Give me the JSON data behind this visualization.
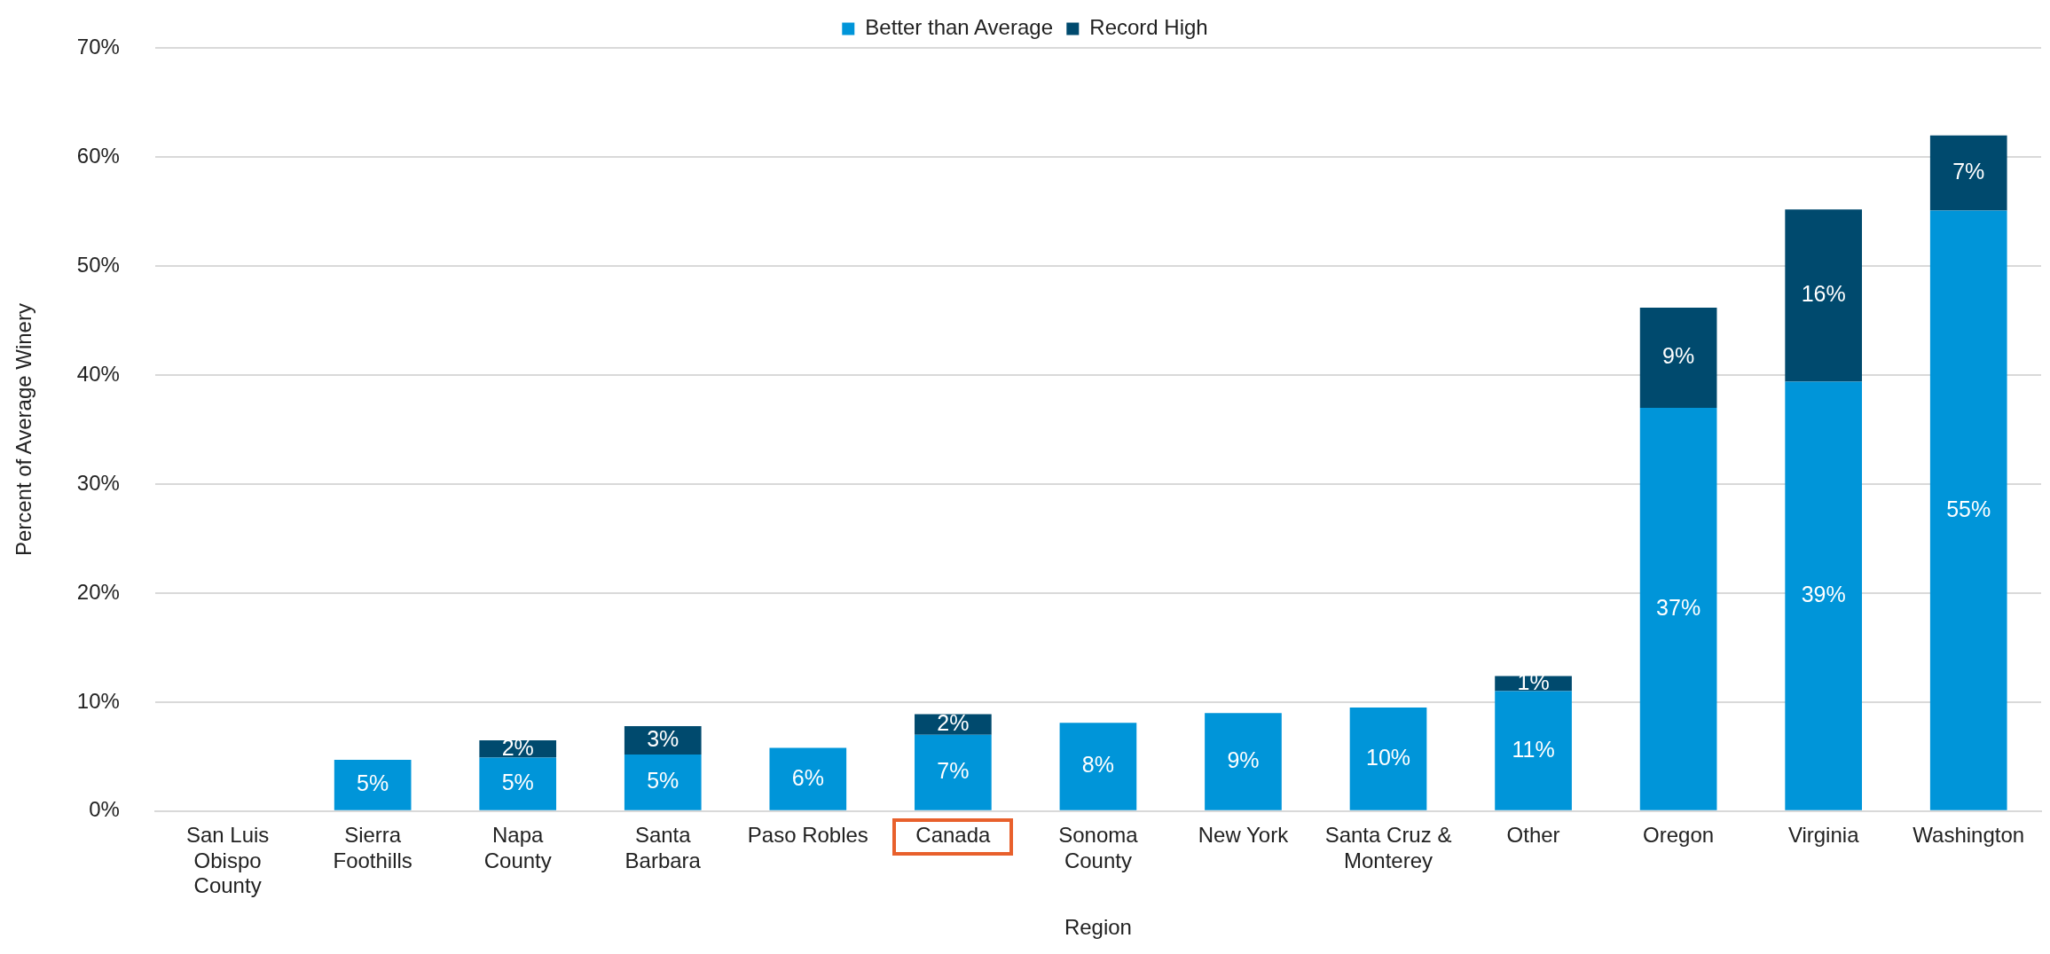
{
  "chart_data": {
    "type": "bar",
    "stacked": true,
    "xlabel": "Region",
    "ylabel": "Percent of Average Winery",
    "categories": [
      "San Luis\nObispo\nCounty",
      "Sierra\nFoothills",
      "Napa\nCounty",
      "Santa\nBarbara",
      "Paso Robles",
      "Canada",
      "Sonoma\nCounty",
      "New York",
      "Santa Cruz &\nMonterey",
      "Other",
      "Oregon",
      "Virginia",
      "Washington"
    ],
    "series": [
      {
        "name": "Better than Average",
        "color": "#0095d9",
        "values": [
          0,
          4.7,
          4.9,
          5.2,
          5.8,
          7.0,
          8.1,
          9.0,
          9.5,
          11.0,
          37.0,
          39.4,
          55.1
        ],
        "value_labels": [
          null,
          "5%",
          "5%",
          "5%",
          "6%",
          "7%",
          "8%",
          "9%",
          "10%",
          "11%",
          "37%",
          "39%",
          "55%"
        ]
      },
      {
        "name": "Record High",
        "color": "#004a6e",
        "values": [
          null,
          null,
          1.6,
          2.6,
          null,
          1.9,
          null,
          null,
          null,
          1.4,
          9.2,
          15.8,
          6.9
        ],
        "value_labels": [
          null,
          null,
          "2%",
          "3%",
          null,
          "2%",
          null,
          null,
          null,
          "1%",
          "9%",
          "16%",
          "7%"
        ]
      }
    ],
    "ylim": [
      0,
      70
    ],
    "yticks": [
      {
        "value": 0,
        "label": "0%"
      },
      {
        "value": 10,
        "label": "10%"
      },
      {
        "value": 20,
        "label": "20%"
      },
      {
        "value": 30,
        "label": "30%"
      },
      {
        "value": 40,
        "label": "40%"
      },
      {
        "value": 50,
        "label": "50%"
      },
      {
        "value": 60,
        "label": "60%"
      },
      {
        "value": 70,
        "label": "70%"
      }
    ],
    "grid": "y",
    "legend": "top"
  }
}
